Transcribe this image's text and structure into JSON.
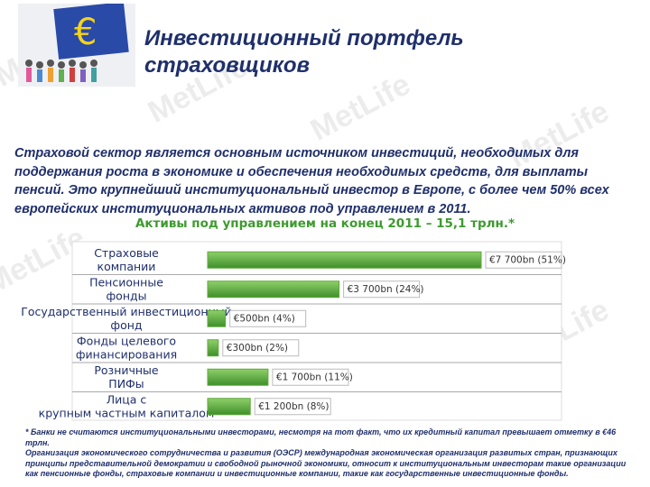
{
  "title": "Инвестиционный портфель страховщиков",
  "intro": "Страховой сектор является основным источником инвестиций, необходимых для поддержания роста в экономике и обеспечения необходимых средств, для выплаты пенсий. Это крупнейший институциональный инвестор в Европе, с более чем 50% всех европейских институциональных активов под управлением в 2011.",
  "watermark": "MetLife",
  "chart_data": {
    "type": "hbar",
    "title": "Активы под управлением на конец 2011 – 15,1 трлн.*",
    "categories": [
      "Страховые компании",
      "Пенсионные фонды",
      "Государственный инвестиционный фонд",
      "Фонды целевого финансирования",
      "Розничные ПИФы",
      "Лица с крупным частным капиталом"
    ],
    "values": [
      7700,
      3700,
      500,
      300,
      1700,
      1200
    ],
    "value_labels": [
      "€7 700bn (51%)",
      "€3 700bn (24%)",
      "€500bn (4%)",
      "€300bn (2%)",
      "€1 700bn (11%)",
      "€1 200bn (8%)"
    ],
    "color": "#5fa93a"
  },
  "footnote": [
    "* Банки не считаются институциональными инвесторами, несмотря на тот факт, что их кредитный капитал превышает отметку в €46 трлн.",
    "Организация экономического сотрудничества и развития (ОЭСР) международная экономическая организация развитых стран, признающих принципы представительной демократии и свободной рыночной экономики, относит к институциональным инвесторам такие организации как пенсионные фонды, страховые компании и инвестиционные компании, такие как государственные инвестиционные фонды."
  ]
}
